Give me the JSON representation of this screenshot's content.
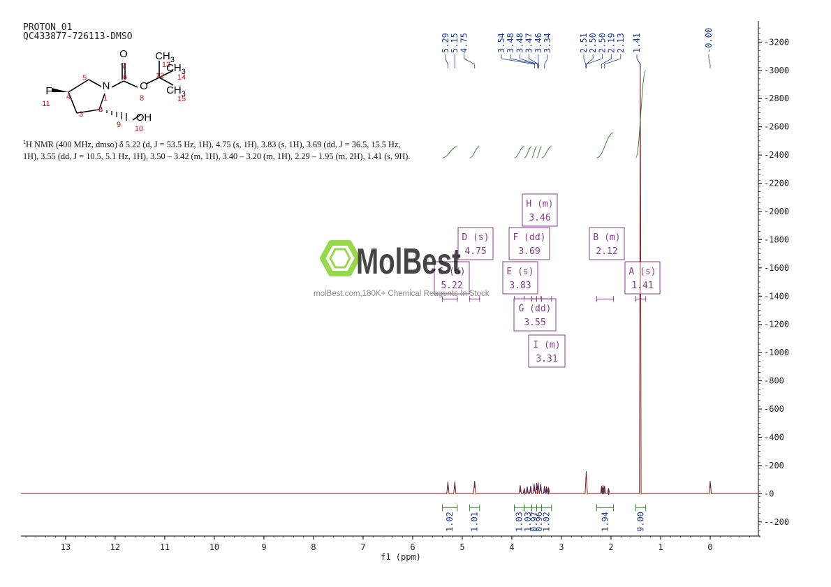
{
  "header": {
    "line1": "PROTON_01",
    "line2": "QC433877-726113-DMSO"
  },
  "structure": {
    "atoms": [
      {
        "sym": "O",
        "num": "7"
      },
      {
        "sym": "",
        "num": "6"
      },
      {
        "sym": "N",
        "num": "1"
      },
      {
        "sym": "O",
        "num": "8"
      },
      {
        "sym": "",
        "num": "5"
      },
      {
        "sym": "",
        "num": "4"
      },
      {
        "sym": "F",
        "num": "11"
      },
      {
        "sym": "",
        "num": "3"
      },
      {
        "sym": "",
        "num": "2"
      },
      {
        "sym": "",
        "num": "9"
      },
      {
        "sym": "OH",
        "num": "10"
      },
      {
        "sym": "",
        "num": "12"
      },
      {
        "sym": "CH3",
        "num": "13"
      },
      {
        "sym": "CH3",
        "num": "14"
      },
      {
        "sym": "CH3",
        "num": "15"
      }
    ],
    "line_color": "#000000",
    "number_color": "#d01010"
  },
  "summary": {
    "prefix_sup": "1",
    "text": "H NMR (400 MHz, dmso) δ 5.22 (d, J = 53.5 Hz, 1H), 4.75 (s, 1H), 3.83 (s, 1H), 3.69 (dd, J = 36.5, 15.5 Hz, 1H), 3.55 (dd, J = 10.5, 5.1 Hz, 1H), 3.50 – 3.42 (m, 1H), 3.40 – 3.20 (m, 1H), 2.29 – 1.95 (m, 2H), 1.41 (s, 9H)."
  },
  "watermark": {
    "brand": "MolBest",
    "tagline": "molBest.com,180K+ Chemical Reagents In Stock",
    "logo_color": "#7ccf1a"
  },
  "chart_data": {
    "type": "line",
    "title": "",
    "xlabel": "f1 (ppm)",
    "ylabel": "",
    "xlim": [
      13.9,
      -1.0
    ],
    "ylim": [
      -300,
      3350
    ],
    "x_ticks": [
      13,
      12,
      11,
      10,
      9,
      8,
      7,
      6,
      5,
      4,
      3,
      2,
      1,
      0
    ],
    "y_ticks": [
      -200,
      0,
      200,
      400,
      600,
      800,
      1000,
      1200,
      1400,
      1600,
      1800,
      2000,
      2200,
      2400,
      2600,
      2800,
      3000,
      3200
    ],
    "grid": false,
    "colors": {
      "spectrum": "#8b1a1a",
      "peak_labels": "#1f3d99",
      "integrals": "#2e8b2e",
      "multiplets": "#8b3a8b",
      "axes": "#000000"
    },
    "peaks": [
      {
        "ppm": 5.29,
        "height": 85
      },
      {
        "ppm": 5.15,
        "height": 85
      },
      {
        "ppm": 4.75,
        "height": 90
      },
      {
        "ppm": 3.83,
        "height": 60
      },
      {
        "ppm": 3.75,
        "height": 40
      },
      {
        "ppm": 3.69,
        "height": 50
      },
      {
        "ppm": 3.62,
        "height": 55
      },
      {
        "ppm": 3.55,
        "height": 70
      },
      {
        "ppm": 3.5,
        "height": 75
      },
      {
        "ppm": 3.47,
        "height": 80
      },
      {
        "ppm": 3.42,
        "height": 70
      },
      {
        "ppm": 3.34,
        "height": 55
      },
      {
        "ppm": 3.3,
        "height": 50
      },
      {
        "ppm": 3.26,
        "height": 45
      },
      {
        "ppm": 2.5,
        "height": 160
      },
      {
        "ppm": 2.19,
        "height": 55
      },
      {
        "ppm": 2.16,
        "height": 60
      },
      {
        "ppm": 2.13,
        "height": 55
      },
      {
        "ppm": 2.05,
        "height": 40
      },
      {
        "ppm": 1.41,
        "height": 3050
      },
      {
        "ppm": 0.0,
        "height": 90
      }
    ],
    "peak_labels": [
      "5.29",
      "5.15",
      "4.75",
      "3.54",
      "3.48",
      "3.48",
      "3.47",
      "3.46",
      "3.34",
      "2.51",
      "2.50",
      "2.50",
      "2.19",
      "2.13",
      "1.41",
      "-0.00"
    ],
    "integrals": [
      {
        "from": 5.4,
        "to": 5.1,
        "value": "1.02"
      },
      {
        "from": 4.85,
        "to": 4.65,
        "value": "1.01"
      },
      {
        "from": 3.95,
        "to": 3.75,
        "value": "1.03"
      },
      {
        "from": 3.75,
        "to": 3.6,
        "value": "1.03"
      },
      {
        "from": 3.6,
        "to": 3.5,
        "value": "0.97"
      },
      {
        "from": 3.5,
        "to": 3.4,
        "value": "0.96"
      },
      {
        "from": 3.4,
        "to": 3.2,
        "value": "1.02"
      },
      {
        "from": 2.29,
        "to": 1.95,
        "value": "1.94"
      },
      {
        "from": 1.5,
        "to": 1.3,
        "value": "9.00"
      }
    ],
    "multiplets": [
      {
        "letter": "H",
        "type": "m",
        "shift": "3.46"
      },
      {
        "letter": "D",
        "type": "s",
        "shift": "4.75"
      },
      {
        "letter": "F",
        "type": "dd",
        "shift": "3.69"
      },
      {
        "letter": "B",
        "type": "m",
        "shift": "2.12"
      },
      {
        "letter": "C",
        "type": "d",
        "shift": "5.22"
      },
      {
        "letter": "E",
        "type": "s",
        "shift": "3.83"
      },
      {
        "letter": "A",
        "type": "s",
        "shift": "1.41"
      },
      {
        "letter": "G",
        "type": "dd",
        "shift": "3.55"
      },
      {
        "letter": "I",
        "type": "m",
        "shift": "3.31"
      }
    ]
  }
}
